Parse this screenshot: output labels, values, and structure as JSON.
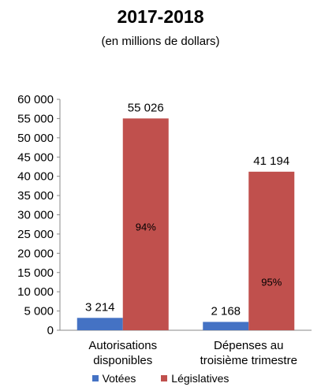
{
  "chart_data": {
    "type": "bar",
    "title": "2017-2018",
    "subtitle": "(en millions de dollars)",
    "categories": [
      [
        "Autorisations",
        "disponibles"
      ],
      [
        "Dépenses au",
        "troisième trimestre"
      ]
    ],
    "series": [
      {
        "name": "Votées",
        "color": "#4472C4",
        "values": [
          3214,
          2168
        ],
        "value_labels": [
          "3 214",
          "2 168"
        ]
      },
      {
        "name": "Législatives",
        "color": "#C0504D",
        "values": [
          55026,
          41194
        ],
        "value_labels": [
          "55 026",
          "41 194"
        ],
        "share_labels": [
          "94%",
          "95%"
        ]
      }
    ],
    "ylim": [
      0,
      60000
    ],
    "yticks": [
      0,
      5000,
      10000,
      15000,
      20000,
      25000,
      30000,
      35000,
      40000,
      45000,
      50000,
      55000,
      60000
    ],
    "ytick_labels": [
      "0",
      "5 000",
      "10 000",
      "15 000",
      "20 000",
      "25 000",
      "30 000",
      "35 000",
      "40 000",
      "45 000",
      "50 000",
      "55 000",
      "60 000"
    ],
    "grid": false,
    "legend": "bottom"
  }
}
